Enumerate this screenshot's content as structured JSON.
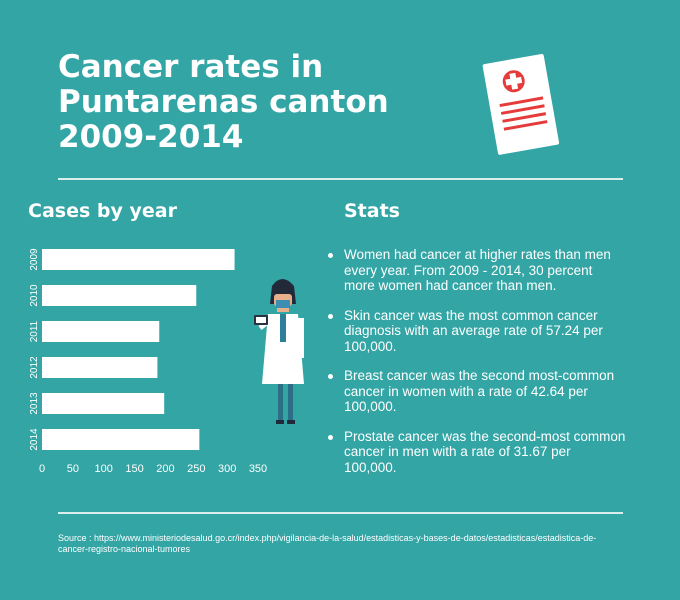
{
  "header": {
    "title": "Cancer rates in Puntarenas canton 2009-2014"
  },
  "left_heading": "Cases by year",
  "right_heading": "Stats",
  "chart_data": {
    "type": "bar",
    "orientation": "horizontal",
    "title": "Cases by year",
    "categories": [
      "2009",
      "2010",
      "2011",
      "2012",
      "2013",
      "2014"
    ],
    "values": [
      312,
      250,
      190,
      187,
      198,
      255
    ],
    "xlim": [
      0,
      350
    ],
    "xticks": [
      0,
      50,
      100,
      150,
      200,
      250,
      300,
      350
    ],
    "grid": false,
    "legend": "none",
    "bar_color": "#ffffff"
  },
  "stats": [
    "Women had cancer at higher rates than men every year. From 2009 - 2014, 30 percent more women had cancer than men.",
    "Skin cancer was the most common cancer diagnosis with an average rate of 57.24 per 100,000.",
    "Breast cancer was the second most-common cancer in women with a rate of 42.64 per 100,000.",
    "Prostate cancer was the second-most common cancer in men with a rate of 31.67 per 100,000."
  ],
  "source": "Source : https://www.ministeriodesalud.go.cr/index.php/vigilancia-de-la-salud/estadisticas-y-bases-de-datos/estadisticas/estadistica-de-cancer-registro-nacional-tumores",
  "icons": {
    "medical_document": "medical-report-icon",
    "doctor": "doctor-with-tablet-illustration"
  },
  "colors": {
    "background": "#33a5a5",
    "text": "#ffffff",
    "cross": "#e53b3b"
  }
}
